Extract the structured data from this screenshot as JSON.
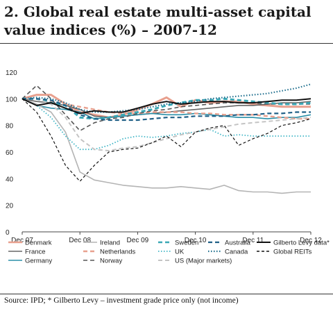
{
  "title": "2. Global real estate multi-asset capital value indices (%) – 2007-12",
  "source": "Source: IPD; * Gilberto Levy – investment grade price only (not income)",
  "chart_data": {
    "type": "line",
    "title": "2. Global real estate multi-asset capital value indices (%) – 2007-12",
    "xlabel": "",
    "ylabel": "",
    "xlim": [
      "2007-12",
      "2012-12"
    ],
    "ylim": [
      0,
      120
    ],
    "yticks": [
      0,
      20,
      40,
      60,
      80,
      100,
      120
    ],
    "xticks": [
      "Dec 07",
      "Dec 08",
      "Dec 09",
      "Dec 10",
      "Dec 11",
      "Dec 12"
    ],
    "grid": false,
    "legend_position": "bottom",
    "x": [
      "2007-12",
      "2008-03",
      "2008-06",
      "2008-09",
      "2008-12",
      "2009-03",
      "2009-06",
      "2009-09",
      "2009-12",
      "2010-03",
      "2010-06",
      "2010-09",
      "2010-12",
      "2011-03",
      "2011-06",
      "2011-09",
      "2011-12",
      "2012-03",
      "2012-06",
      "2012-09",
      "2012-12"
    ],
    "series": [
      {
        "name": "Denmark",
        "color": "#e8a08e",
        "dash": "solid",
        "width": 3,
        "values": [
          100,
          103,
          103,
          96,
          90,
          88,
          86,
          88,
          92,
          96,
          101,
          94,
          99,
          97,
          98,
          98,
          96,
          95,
          94,
          94,
          94
        ]
      },
      {
        "name": "France",
        "color": "#666666",
        "dash": "solid",
        "width": 1.6,
        "values": [
          100,
          98,
          97,
          95,
          92,
          87,
          86,
          87,
          88,
          89,
          90,
          91,
          92,
          93,
          94,
          95,
          95,
          96,
          97,
          97,
          98
        ]
      },
      {
        "name": "Germany",
        "color": "#2b8fa8",
        "dash": "solid",
        "width": 1.6,
        "values": [
          100,
          95,
          93,
          92,
          90,
          85,
          86,
          87,
          88,
          89,
          88,
          88,
          89,
          88,
          87,
          86,
          86,
          85,
          86,
          86,
          88
        ]
      },
      {
        "name": "Ireland",
        "color": "#b4b4b4",
        "dash": "solid",
        "width": 1.6,
        "values": [
          100,
          96,
          90,
          75,
          45,
          39,
          37,
          35,
          34,
          33,
          33,
          34,
          33,
          32,
          35,
          31,
          30,
          30,
          29,
          30,
          30
        ]
      },
      {
        "name": "Netherlands",
        "color": "#e8a08e",
        "dash": "dashed",
        "width": 2.4,
        "values": [
          100,
          100,
          98,
          96,
          94,
          92,
          90,
          89,
          89,
          90,
          90,
          90,
          89,
          89,
          88,
          88,
          88,
          87,
          86,
          85,
          85
        ]
      },
      {
        "name": "Norway",
        "color": "#555555",
        "dash": "dashed",
        "width": 1.6,
        "values": [
          100,
          110,
          100,
          88,
          76,
          82,
          85,
          86,
          89,
          91,
          92,
          94,
          95,
          96,
          97,
          97,
          97,
          96,
          96,
          96,
          96
        ]
      },
      {
        "name": "Sweden",
        "color": "#3aa7b5",
        "dash": "dashed",
        "width": 3,
        "values": [
          100,
          100,
          97,
          95,
          86,
          85,
          86,
          88,
          90,
          92,
          95,
          97,
          99,
          99,
          100,
          99,
          98,
          97,
          96,
          96,
          97
        ]
      },
      {
        "name": "UK",
        "color": "#3fb5c6",
        "dash": "dotted",
        "width": 1.8,
        "values": [
          100,
          95,
          86,
          72,
          62,
          62,
          65,
          70,
          72,
          71,
          72,
          74,
          75,
          77,
          72,
          73,
          72,
          72,
          72,
          72,
          72
        ]
      },
      {
        "name": "US (Major markets)",
        "color": "#c4c4c4",
        "dash": "dashed",
        "width": 2,
        "values": [
          100,
          100,
          96,
          86,
          70,
          62,
          61,
          63,
          64,
          67,
          70,
          73,
          75,
          77,
          79,
          81,
          82,
          83,
          84,
          85,
          86
        ]
      },
      {
        "name": "Australia",
        "color": "#1f5f86",
        "dash": "dashed",
        "width": 2.2,
        "values": [
          100,
          100,
          99,
          95,
          88,
          85,
          84,
          84,
          84,
          85,
          86,
          86,
          87,
          87,
          87,
          88,
          88,
          89,
          89,
          90,
          90
        ]
      },
      {
        "name": "Canada",
        "color": "#1f6f8e",
        "dash": "dotted",
        "width": 2.2,
        "values": [
          100,
          101,
          100,
          97,
          92,
          90,
          90,
          91,
          92,
          94,
          96,
          97,
          98,
          100,
          101,
          102,
          103,
          104,
          106,
          108,
          111
        ]
      },
      {
        "name": "Gilberto Levy data*",
        "color": "#111111",
        "dash": "solid",
        "width": 2,
        "values": [
          100,
          95,
          97,
          93,
          89,
          91,
          90,
          90,
          93,
          96,
          98,
          96,
          97,
          98,
          98,
          97,
          97,
          98,
          99,
          99,
          100
        ]
      },
      {
        "name": "Global REITs",
        "color": "#111111",
        "dash": "dashed-thin",
        "width": 1.2,
        "values": [
          100,
          90,
          72,
          50,
          38,
          50,
          60,
          62,
          63,
          67,
          72,
          64,
          75,
          78,
          80,
          65,
          70,
          74,
          80,
          82,
          85
        ]
      }
    ]
  }
}
